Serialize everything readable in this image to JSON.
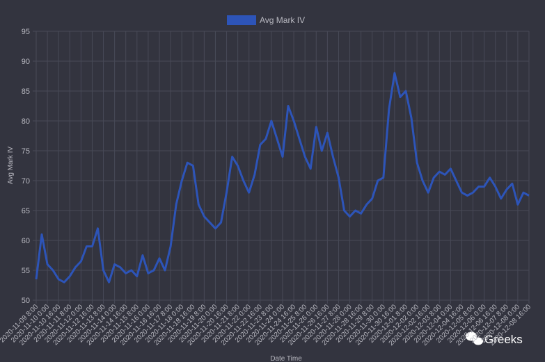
{
  "chart_data": {
    "type": "line",
    "legend": "top",
    "grid": true,
    "xlabel": "Date Time",
    "ylabel": "Avg Mark IV",
    "ylim": [
      50,
      95
    ],
    "yticks": [
      50,
      55,
      60,
      65,
      70,
      75,
      80,
      85,
      90,
      95
    ],
    "categories": [
      "2020-11-09 8:00",
      null,
      "2020-11-10 0:00",
      null,
      "2020-11-10 16:00",
      null,
      "2020-11-11 8:00",
      null,
      "2020-11-12 0:00",
      null,
      "2020-11-12 16:00",
      null,
      "2020-11-13 8:00",
      null,
      "2020-11-14 0:00",
      null,
      "2020-11-14 16:00",
      null,
      "2020-11-15 8:00",
      null,
      "2020-11-16 0:00",
      null,
      "2020-11-16 16:00",
      null,
      "2020-11-17 8:00",
      null,
      "2020-11-18 0:00",
      null,
      "2020-11-18 16:00",
      null,
      "2020-11-19 8:00",
      null,
      "2020-11-20 0:00",
      null,
      "2020-11-20 16:00",
      null,
      "2020-11-21 8:00",
      null,
      "2020-11-22 0:00",
      null,
      "2020-11-22 16:00",
      null,
      "2020-11-23 8:00",
      null,
      "2020-11-24 0:00",
      null,
      "2020-11-24 16:00",
      null,
      "2020-11-25 8:00",
      null,
      "2020-11-26 0:00",
      null,
      "2020-11-26 16:00",
      null,
      "2020-11-27 8:00",
      null,
      "2020-11-28 0:00",
      null,
      "2020-11-28 16:00",
      null,
      "2020-11-29 8:00",
      null,
      "2020-11-30 0:00",
      null,
      "2020-11-30 16:00",
      null,
      "2020-12-01 8:00",
      null,
      "2020-12-02 0:00",
      null,
      "2020-12-02 16:00",
      null,
      "2020-12-03 8:00",
      null,
      "2020-12-04 0:00",
      null,
      "2020-12-04 16:00",
      null,
      "2020-12-05 8:00",
      null,
      "2020-12-06 0:00",
      null,
      "2020-12-06 16:00",
      null,
      "2020-12-07 8:00",
      null,
      "2020-12-08 0:00",
      null,
      "2020-12-08 16:00"
    ],
    "series": [
      {
        "name": "Avg Mark IV",
        "color": "#2d54b8",
        "values": [
          53.5,
          61,
          56,
          55,
          53.5,
          53,
          54,
          55.5,
          56.5,
          59,
          59,
          62,
          55,
          53,
          56,
          55.5,
          54.5,
          55,
          54,
          57.5,
          54.5,
          55,
          57,
          55,
          59,
          66,
          70,
          73,
          72.5,
          66,
          64,
          63,
          62,
          63,
          68,
          74,
          72.5,
          70,
          68,
          71,
          76,
          77,
          80,
          77,
          74,
          82.5,
          80,
          77,
          74,
          72,
          79,
          75,
          78,
          74,
          70.5,
          65,
          64,
          65,
          64.5,
          66,
          67,
          70,
          70.5,
          82,
          88,
          84,
          85,
          80.5,
          73,
          70,
          68,
          70.5,
          71.5,
          71,
          72,
          70,
          68,
          67.5,
          68,
          69,
          69,
          70.5,
          69,
          67,
          68.5,
          69.5,
          66,
          68,
          67.5
        ]
      }
    ]
  },
  "watermark": "Greeks"
}
